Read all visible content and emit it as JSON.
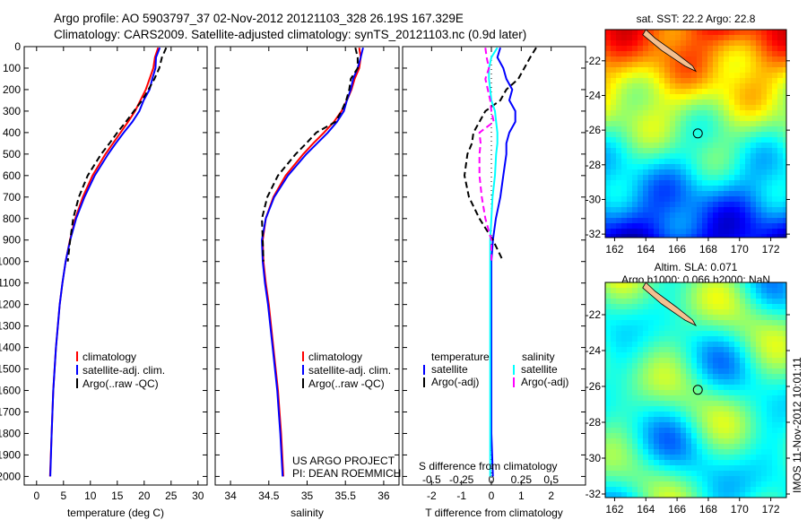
{
  "title_line1": "Argo profile: AO 5903797_37 02-Nov-2012 20121103_328 26.19S 167.329E",
  "title_line2": "Climatology: CARS2009. Satellite-adjusted climatology: synTS_20121103.nc (0.9d later)",
  "project_line1": "US ARGO PROJECT",
  "project_line2": "PI: DEAN ROEMMICH",
  "timestamp": "IMOS 11-Nov-2012 10:01:11",
  "colors": {
    "climatology": "#ff0000",
    "satellite": "#0000ff",
    "argo": "#000000",
    "sal_satellite": "#00ffff",
    "sal_argo": "#ff00ff",
    "land": "#f4c090"
  },
  "chart_data": [
    {
      "type": "line",
      "id": "temperature",
      "xlabel": "temperature (deg C)",
      "ylabel": "",
      "xlim": [
        -2.3,
        31.7
      ],
      "ylim": [
        2040,
        0
      ],
      "xticks": [
        0,
        5,
        10,
        15,
        20,
        25,
        30
      ],
      "yticks": [
        0,
        100,
        200,
        300,
        400,
        500,
        600,
        700,
        800,
        900,
        1000,
        1100,
        1200,
        1300,
        1400,
        1500,
        1600,
        1700,
        1800,
        1900,
        2000
      ],
      "legend": [
        "climatology",
        "satellite-adj. clim.",
        "Argo(..raw -QC)"
      ],
      "depth": [
        5,
        50,
        100,
        150,
        200,
        250,
        300,
        350,
        400,
        450,
        500,
        600,
        700,
        800,
        900,
        1000,
        1100,
        1200,
        1400,
        1600,
        1800,
        2000
      ],
      "series": [
        {
          "name": "climatology",
          "values": [
            22.6,
            22.0,
            21.7,
            21.0,
            20.3,
            19.3,
            18.3,
            17.0,
            15.6,
            14.2,
            12.8,
            10.4,
            8.6,
            7.2,
            6.2,
            5.4,
            4.8,
            4.3,
            3.6,
            3.1,
            2.8,
            2.5
          ]
        },
        {
          "name": "satellite-adj. clim.",
          "values": [
            22.9,
            22.2,
            22.1,
            21.5,
            21.0,
            19.9,
            19.1,
            17.8,
            16.2,
            14.7,
            13.3,
            10.8,
            8.9,
            7.35,
            6.25,
            5.4,
            4.8,
            4.3,
            3.6,
            3.1,
            2.8,
            2.55
          ]
        },
        {
          "name": "Argo(..raw -QC)",
          "values": [
            24.1,
            23.3,
            22.8,
            21.9,
            20.8,
            19.6,
            18.1,
            16.6,
            15.0,
            13.55,
            12.0,
            9.5,
            7.85,
            6.8,
            6.25,
            5.8
          ]
        }
      ]
    },
    {
      "type": "line",
      "id": "salinity",
      "xlabel": "salinity",
      "xlim": [
        33.8,
        36.2
      ],
      "ylim": [
        2040,
        0
      ],
      "xticks": [
        34,
        34.5,
        35,
        35.5,
        36
      ],
      "legend": [
        "climatology",
        "satellite-adj. clim.",
        "Argo(..raw -QC)"
      ],
      "depth": [
        5,
        50,
        100,
        150,
        200,
        250,
        300,
        350,
        400,
        450,
        500,
        600,
        700,
        800,
        900,
        1000,
        1100,
        1200,
        1400,
        1600,
        1800,
        2000
      ],
      "series": [
        {
          "name": "climatology",
          "values": [
            35.68,
            35.7,
            35.68,
            35.62,
            35.58,
            35.52,
            35.45,
            35.35,
            35.22,
            35.08,
            34.95,
            34.72,
            34.56,
            34.46,
            34.42,
            34.43,
            34.46,
            34.5,
            34.56,
            34.62,
            34.66,
            34.69
          ]
        },
        {
          "name": "satellite-adj. clim.",
          "values": [
            35.73,
            35.7,
            35.66,
            35.6,
            35.57,
            35.52,
            35.48,
            35.39,
            35.27,
            35.13,
            34.99,
            34.75,
            34.57,
            34.46,
            34.41,
            34.42,
            34.45,
            34.49,
            34.55,
            34.61,
            34.65,
            34.68
          ]
        },
        {
          "name": "Argo(..raw -QC)",
          "values": [
            35.63,
            35.66,
            35.66,
            35.57,
            35.55,
            35.51,
            35.45,
            35.37,
            35.12,
            34.99,
            34.85,
            34.62,
            34.48,
            34.41,
            34.42,
            34.43
          ]
        }
      ]
    },
    {
      "type": "line",
      "id": "difference",
      "xlabel": "T difference from climatology",
      "x2label": "S difference from climatology",
      "xlim": [
        -2.97,
        3.15
      ],
      "x2lim": [
        -0.7425,
        0.7875
      ],
      "ylim": [
        2040,
        0
      ],
      "xticks": [
        -2,
        -1,
        0,
        1,
        2
      ],
      "x2ticks": [
        "-0.5",
        "-0.25",
        "0",
        "0.25",
        "0.5"
      ],
      "legend_headers": [
        "temperature",
        "salinity"
      ],
      "legend": [
        "satellite",
        "Argo(-adj)",
        "satellite",
        "Argo(-adj)"
      ],
      "depth": [
        5,
        50,
        100,
        150,
        200,
        250,
        300,
        350,
        400,
        450,
        500,
        600,
        700,
        800,
        900,
        1000,
        1100,
        1200,
        1400,
        1600,
        1800,
        2000
      ],
      "series": [
        {
          "name": "T satellite",
          "units": "T",
          "values": [
            0.3,
            0.2,
            0.4,
            0.5,
            0.7,
            0.6,
            0.8,
            0.8,
            0.6,
            0.5,
            0.5,
            0.4,
            0.3,
            0.15,
            0.05,
            0,
            0,
            0,
            0,
            0,
            0,
            0.05
          ]
        },
        {
          "name": "T Argo(-adj)",
          "units": "T",
          "values": [
            1.5,
            1.3,
            1.1,
            0.9,
            0.5,
            0.3,
            -0.2,
            -0.4,
            -0.6,
            -0.65,
            -0.8,
            -0.9,
            -0.75,
            -0.4,
            0.05,
            0.4
          ]
        },
        {
          "name": "S satellite",
          "units": "S",
          "values": [
            0.05,
            0.0,
            -0.02,
            -0.02,
            -0.01,
            0.0,
            0.03,
            0.04,
            0.05,
            0.05,
            0.04,
            0.03,
            0.01,
            0,
            -0.01,
            -0.01,
            -0.01,
            -0.01,
            -0.01,
            -0.01,
            -0.01,
            -0.01
          ]
        },
        {
          "name": "S Argo(-adj)",
          "units": "S",
          "values": [
            -0.05,
            -0.04,
            -0.02,
            -0.05,
            -0.03,
            -0.01,
            0.0,
            0.02,
            -0.1,
            -0.09,
            -0.1,
            -0.1,
            -0.08,
            -0.05,
            0.0,
            0.0
          ]
        }
      ]
    },
    {
      "type": "heatmap",
      "id": "sst_map",
      "title": "sat. SST: 22.2 Argo: 22.8",
      "xlim": [
        161.4,
        173
      ],
      "ylim": [
        -32.2,
        -20.2
      ],
      "xticks": [
        162,
        164,
        166,
        168,
        170,
        172
      ],
      "yticks": [
        -22,
        -24,
        -26,
        -28,
        -30,
        -32
      ],
      "profile_position": {
        "lon": 167.329,
        "lat": -26.19
      }
    },
    {
      "type": "heatmap",
      "id": "sla_map",
      "title_line1": "Altim. SLA: 0.071",
      "title_line2": "Argo h1000: 0.066 h2000: NaN",
      "xlim": [
        161.4,
        173
      ],
      "ylim": [
        -32.2,
        -20.2
      ],
      "xticks": [
        162,
        164,
        166,
        168,
        170,
        172
      ],
      "yticks": [
        -22,
        -24,
        -26,
        -28,
        -30,
        -32
      ],
      "profile_position": {
        "lon": 167.329,
        "lat": -26.19
      }
    }
  ]
}
